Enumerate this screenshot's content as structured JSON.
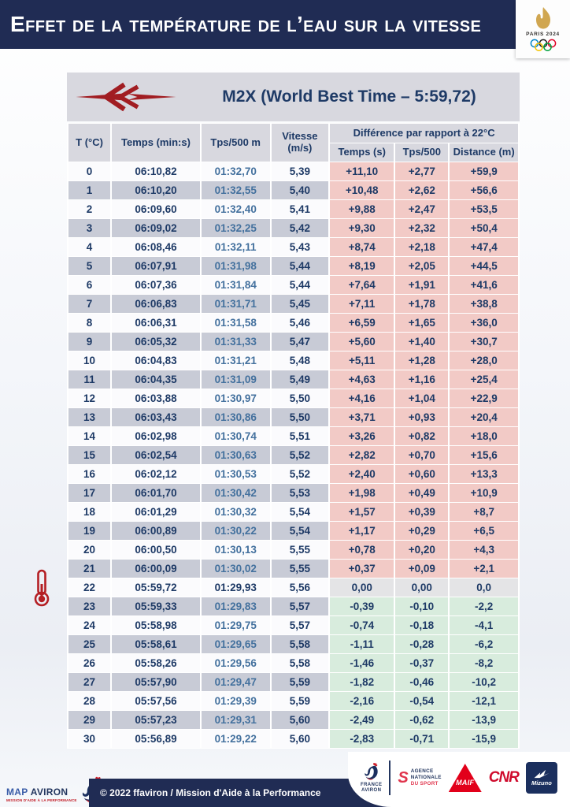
{
  "header": {
    "title": "Effet de la température de l’eau sur la vitesse",
    "paris2024_label": "PARIS 2024"
  },
  "table": {
    "title": "M2X (World Best Time – 5:59,72)",
    "headers": {
      "temp": "T (°C)",
      "temps": "Temps (min:s)",
      "tps500": "Tps/500 m",
      "vitesse_line1": "Vitesse",
      "vitesse_line2": "(m/s)",
      "diff_group": "Différence par rapport à 22°C",
      "diff_temps": "Temps (s)",
      "diff_tps500": "Tps/500",
      "diff_distance": "Distance (m)"
    },
    "rows": [
      [
        "0",
        "06:10,82",
        "01:32,70",
        "5,39",
        "+11,10",
        "+2,77",
        "+59,9"
      ],
      [
        "1",
        "06:10,20",
        "01:32,55",
        "5,40",
        "+10,48",
        "+2,62",
        "+56,6"
      ],
      [
        "2",
        "06:09,60",
        "01:32,40",
        "5,41",
        "+9,88",
        "+2,47",
        "+53,5"
      ],
      [
        "3",
        "06:09,02",
        "01:32,25",
        "5,42",
        "+9,30",
        "+2,32",
        "+50,4"
      ],
      [
        "4",
        "06:08,46",
        "01:32,11",
        "5,43",
        "+8,74",
        "+2,18",
        "+47,4"
      ],
      [
        "5",
        "06:07,91",
        "01:31,98",
        "5,44",
        "+8,19",
        "+2,05",
        "+44,5"
      ],
      [
        "6",
        "06:07,36",
        "01:31,84",
        "5,44",
        "+7,64",
        "+1,91",
        "+41,6"
      ],
      [
        "7",
        "06:06,83",
        "01:31,71",
        "5,45",
        "+7,11",
        "+1,78",
        "+38,8"
      ],
      [
        "8",
        "06:06,31",
        "01:31,58",
        "5,46",
        "+6,59",
        "+1,65",
        "+36,0"
      ],
      [
        "9",
        "06:05,32",
        "01:31,33",
        "5,47",
        "+5,60",
        "+1,40",
        "+30,7"
      ],
      [
        "10",
        "06:04,83",
        "01:31,21",
        "5,48",
        "+5,11",
        "+1,28",
        "+28,0"
      ],
      [
        "11",
        "06:04,35",
        "01:31,09",
        "5,49",
        "+4,63",
        "+1,16",
        "+25,4"
      ],
      [
        "12",
        "06:03,88",
        "01:30,97",
        "5,50",
        "+4,16",
        "+1,04",
        "+22,9"
      ],
      [
        "13",
        "06:03,43",
        "01:30,86",
        "5,50",
        "+3,71",
        "+0,93",
        "+20,4"
      ],
      [
        "14",
        "06:02,98",
        "01:30,74",
        "5,51",
        "+3,26",
        "+0,82",
        "+18,0"
      ],
      [
        "15",
        "06:02,54",
        "01:30,63",
        "5,52",
        "+2,82",
        "+0,70",
        "+15,6"
      ],
      [
        "16",
        "06:02,12",
        "01:30,53",
        "5,52",
        "+2,40",
        "+0,60",
        "+13,3"
      ],
      [
        "17",
        "06:01,70",
        "01:30,42",
        "5,53",
        "+1,98",
        "+0,49",
        "+10,9"
      ],
      [
        "18",
        "06:01,29",
        "01:30,32",
        "5,54",
        "+1,57",
        "+0,39",
        "+8,7"
      ],
      [
        "19",
        "06:00,89",
        "01:30,22",
        "5,54",
        "+1,17",
        "+0,29",
        "+6,5"
      ],
      [
        "20",
        "06:00,50",
        "01:30,13",
        "5,55",
        "+0,78",
        "+0,20",
        "+4,3"
      ],
      [
        "21",
        "06:00,09",
        "01:30,02",
        "5,55",
        "+0,37",
        "+0,09",
        "+2,1"
      ],
      [
        "22",
        "05:59,72",
        "01:29,93",
        "5,56",
        "0,00",
        "0,00",
        "0,0"
      ],
      [
        "23",
        "05:59,33",
        "01:29,83",
        "5,57",
        "-0,39",
        "-0,10",
        "-2,2"
      ],
      [
        "24",
        "05:58,98",
        "01:29,75",
        "5,57",
        "-0,74",
        "-0,18",
        "-4,1"
      ],
      [
        "25",
        "05:58,61",
        "01:29,65",
        "5,58",
        "-1,11",
        "-0,28",
        "-6,2"
      ],
      [
        "26",
        "05:58,26",
        "01:29,56",
        "5,58",
        "-1,46",
        "-0,37",
        "-8,2"
      ],
      [
        "27",
        "05:57,90",
        "01:29,47",
        "5,59",
        "-1,82",
        "-0,46",
        "-10,2"
      ],
      [
        "28",
        "05:57,56",
        "01:29,39",
        "5,59",
        "-2,16",
        "-0,54",
        "-12,1"
      ],
      [
        "29",
        "05:57,23",
        "01:29,31",
        "5,60",
        "-2,49",
        "-0,62",
        "-13,9"
      ],
      [
        "30",
        "05:56,89",
        "01:29,22",
        "5,60",
        "-2,83",
        "-0,71",
        "-15,9"
      ]
    ]
  },
  "colors": {
    "navy": "#202c54",
    "text_navy": "#1e3a66",
    "band_gray": "#d8d8df",
    "row_gray": "#c8cbd6",
    "diff_plus_pink": "#f2cac6",
    "diff_minus_green": "#d8ecdd",
    "diff_zero_gray": "#e4e4e6",
    "tps500_blue": "#44719e",
    "logo_red": "#a11d22",
    "gold": "#d0a650"
  },
  "footer": {
    "map_aviron": {
      "name_map": "MAP",
      "name_aviron": " AVIRON",
      "subtitle": "MISSION D'AIDE À LA PERFORMANCE"
    },
    "copyright": "© 2022 ffaviron / Mission d'Aide à la Performance",
    "sponsors": {
      "france_aviron": {
        "line1": "FRANCE",
        "line2": "AVIRON"
      },
      "ans": {
        "line1": "AGENCE",
        "line2": "NATIONALE",
        "line3": "DU SPORT"
      },
      "maif": "MAIF",
      "cnr": "CNR",
      "mizuno": "Mizuno"
    }
  }
}
